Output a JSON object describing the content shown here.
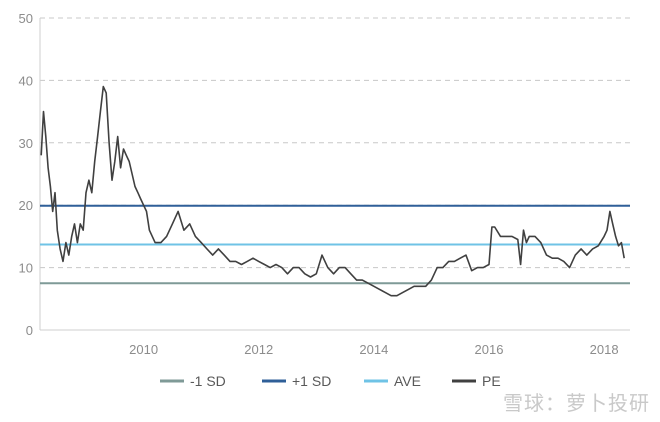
{
  "chart_data": {
    "type": "line",
    "title": "",
    "xlabel": "",
    "ylabel": "",
    "xlim": [
      2008.2,
      2018.45
    ],
    "ylim": [
      0,
      50
    ],
    "y_ticks": [
      0,
      10,
      20,
      30,
      40,
      50
    ],
    "x_ticks": [
      2010,
      2012,
      2014,
      2016,
      2018
    ],
    "grid": "horizontal dashed",
    "legend_position": "bottom",
    "series": [
      {
        "name": "-1 SD",
        "color": "#7f9a97",
        "x": [
          2008.2,
          2018.45
        ],
        "values": [
          7.5,
          7.5
        ]
      },
      {
        "name": "+1 SD",
        "color": "#2f5f98",
        "x": [
          2008.2,
          2018.45
        ],
        "values": [
          19.9,
          19.9
        ]
      },
      {
        "name": "AVE",
        "color": "#6fc3e6",
        "x": [
          2008.2,
          2018.45
        ],
        "values": [
          13.7,
          13.7
        ]
      },
      {
        "name": "PE",
        "color": "#404040",
        "x": [
          2008.22,
          2008.26,
          2008.3,
          2008.34,
          2008.38,
          2008.42,
          2008.46,
          2008.5,
          2008.55,
          2008.6,
          2008.65,
          2008.7,
          2008.75,
          2008.8,
          2008.85,
          2008.9,
          2008.95,
          2009.0,
          2009.05,
          2009.1,
          2009.15,
          2009.2,
          2009.25,
          2009.3,
          2009.35,
          2009.4,
          2009.45,
          2009.5,
          2009.55,
          2009.6,
          2009.65,
          2009.7,
          2009.75,
          2009.8,
          2009.85,
          2009.9,
          2009.95,
          2010.0,
          2010.05,
          2010.1,
          2010.2,
          2010.3,
          2010.4,
          2010.5,
          2010.6,
          2010.7,
          2010.8,
          2010.9,
          2011.0,
          2011.1,
          2011.2,
          2011.3,
          2011.4,
          2011.5,
          2011.6,
          2011.7,
          2011.8,
          2011.9,
          2012.0,
          2012.1,
          2012.2,
          2012.3,
          2012.4,
          2012.5,
          2012.6,
          2012.7,
          2012.8,
          2012.9,
          2013.0,
          2013.1,
          2013.2,
          2013.3,
          2013.4,
          2013.5,
          2013.6,
          2013.7,
          2013.8,
          2013.9,
          2014.0,
          2014.1,
          2014.2,
          2014.3,
          2014.4,
          2014.5,
          2014.6,
          2014.7,
          2014.8,
          2014.9,
          2015.0,
          2015.1,
          2015.2,
          2015.3,
          2015.4,
          2015.5,
          2015.6,
          2015.7,
          2015.8,
          2015.9,
          2016.0,
          2016.05,
          2016.1,
          2016.2,
          2016.3,
          2016.4,
          2016.5,
          2016.55,
          2016.6,
          2016.65,
          2016.7,
          2016.8,
          2016.9,
          2017.0,
          2017.1,
          2017.2,
          2017.3,
          2017.4,
          2017.5,
          2017.6,
          2017.7,
          2017.8,
          2017.9,
          2018.0,
          2018.05,
          2018.1,
          2018.15,
          2018.2,
          2018.25,
          2018.3,
          2018.35
        ],
        "values": [
          28,
          35,
          31,
          26,
          23,
          19,
          22,
          16,
          13,
          11,
          14,
          12,
          15,
          17,
          14,
          17,
          16,
          22,
          24,
          22,
          27,
          31,
          35,
          39,
          38,
          30,
          24,
          27,
          31,
          26,
          29,
          28,
          27,
          25,
          23,
          22,
          21,
          20,
          19,
          16,
          14,
          14,
          15,
          17,
          19,
          16,
          17,
          15,
          14,
          13,
          12,
          13,
          12,
          11,
          11,
          10.5,
          11,
          11.5,
          11,
          10.5,
          10,
          10.5,
          10,
          9,
          10,
          10,
          9,
          8.5,
          9,
          12,
          10,
          9,
          10,
          10,
          9,
          8,
          8,
          7.5,
          7,
          6.5,
          6,
          5.5,
          5.5,
          6,
          6.5,
          7,
          7,
          7,
          8,
          10,
          10,
          11,
          11,
          11.5,
          12,
          9.5,
          10,
          10,
          10.5,
          16.5,
          16.5,
          15,
          15,
          15,
          14.5,
          10.5,
          16,
          14,
          15,
          15,
          14,
          12,
          11.5,
          11.5,
          11,
          10,
          12,
          13,
          12,
          13,
          13.5,
          15,
          16,
          19,
          17,
          15,
          13.5,
          14,
          11.5
        ]
      }
    ]
  },
  "watermark": "雪球：萝卜投研"
}
